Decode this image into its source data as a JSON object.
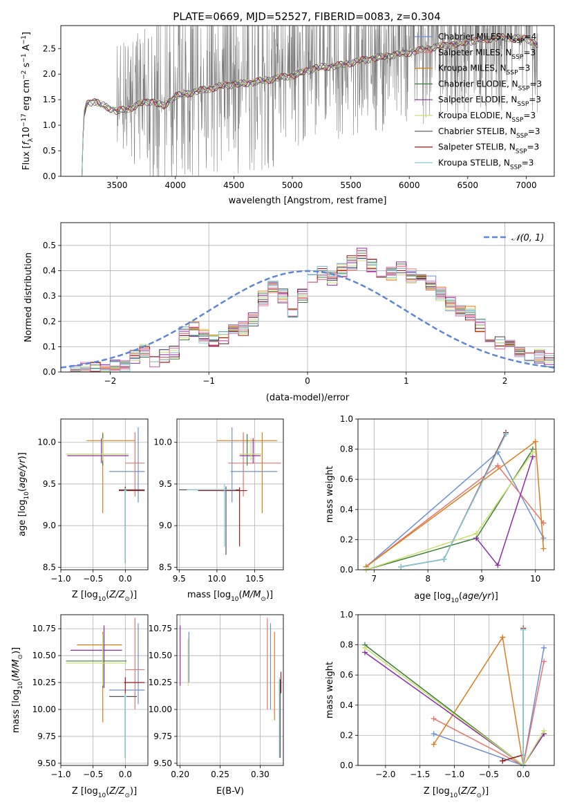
{
  "figure": {
    "title": "PLATE=0669, MJD=52527, FIBERID=0083, z=0.304"
  },
  "colors": {
    "data_spectrum": "#808080",
    "Chabrier MILES": "#6a8fd8",
    "Salpeter MILES": "#e8736a",
    "Kroupa MILES": "#e07b1a",
    "Chabrier ELODIE": "#3a7d3a",
    "Salpeter ELODIE": "#8e2aa8",
    "Kroupa ELODIE": "#c8e06a",
    "Chabrier STELIB": "#505050",
    "Salpeter STELIB": "#a01818",
    "Kroupa STELIB": "#80d0e0",
    "normal_curve": "#5b87d6",
    "pink": "#e87cb8"
  },
  "chart_data": [
    {
      "id": "spectrum",
      "type": "line",
      "xlabel": "wavelength [Angstrom, rest frame]",
      "ylabel_parts": [
        "Flux [",
        "f",
        "λ",
        "10",
        "−17",
        " erg cm",
        "−2",
        " s",
        "−1",
        " A",
        "−1",
        "]"
      ],
      "xlim": [
        3020,
        7240
      ],
      "ylim": [
        0,
        2.95
      ],
      "xticks": [
        3500,
        4000,
        4500,
        5000,
        5500,
        6000,
        6500,
        7000
      ],
      "yticks": [
        0.0,
        0.5,
        1.0,
        1.5,
        2.0,
        2.5
      ],
      "continuum_points": [
        [
          3200,
          0.0
        ],
        [
          3215,
          1.2
        ],
        [
          3240,
          1.45
        ],
        [
          3300,
          1.5
        ],
        [
          3400,
          1.4
        ],
        [
          3500,
          1.3
        ],
        [
          3600,
          1.35
        ],
        [
          3700,
          1.45
        ],
        [
          3800,
          1.5
        ],
        [
          3900,
          1.4
        ],
        [
          4000,
          1.6
        ],
        [
          4200,
          1.7
        ],
        [
          4400,
          1.8
        ],
        [
          4600,
          1.85
        ],
        [
          4800,
          1.92
        ],
        [
          5000,
          2.0
        ],
        [
          5200,
          2.15
        ],
        [
          5400,
          2.2
        ],
        [
          5600,
          2.3
        ],
        [
          5800,
          2.38
        ],
        [
          6000,
          2.45
        ],
        [
          6200,
          2.55
        ],
        [
          6400,
          2.62
        ],
        [
          6600,
          2.7
        ],
        [
          6800,
          2.75
        ],
        [
          7000,
          2.72
        ],
        [
          7100,
          2.6
        ]
      ],
      "legend": [
        {
          "label": "Chabrier MILES",
          "sub": "SSP",
          "n": "4"
        },
        {
          "label": "Salpeter MILES",
          "sub": "SSP",
          "n": "3"
        },
        {
          "label": "Kroupa MILES",
          "sub": "SSP",
          "n": "3"
        },
        {
          "label": "Chabrier ELODIE",
          "sub": "SSP",
          "n": "3"
        },
        {
          "label": "Salpeter ELODIE",
          "sub": "SSP",
          "n": "3"
        },
        {
          "label": "Kroupa ELODIE",
          "sub": "SSP",
          "n": "3"
        },
        {
          "label": "Chabrier STELIB",
          "sub": "SSP",
          "n": "3"
        },
        {
          "label": "Salpeter STELIB",
          "sub": "SSP",
          "n": "3"
        },
        {
          "label": "Kroupa STELIB",
          "sub": "SSP",
          "n": "3"
        }
      ],
      "legend_placement": "upper right"
    },
    {
      "id": "residuals",
      "type": "histogram",
      "xlabel": "(data-model)/error",
      "ylabel": "Normed distribution",
      "xlim": [
        -2.5,
        2.5
      ],
      "ylim": [
        0,
        0.59
      ],
      "xticks": [
        -2,
        -1,
        0,
        1,
        2
      ],
      "yticks": [
        0.0,
        0.1,
        0.2,
        0.3,
        0.4,
        0.5
      ],
      "grid": true,
      "legend": "𝒩(0, 1)",
      "bin_width": 0.1,
      "bin_start": -2.5,
      "hist_values": [
        0.0,
        0.0,
        0.01,
        0.01,
        0.0,
        0.02,
        0.02,
        0.06,
        0.08,
        0.04,
        0.06,
        0.08,
        0.15,
        0.17,
        0.14,
        0.12,
        0.14,
        0.16,
        0.17,
        0.21,
        0.29,
        0.33,
        0.3,
        0.24,
        0.3,
        0.38,
        0.39,
        0.37,
        0.4,
        0.43,
        0.46,
        0.42,
        0.38,
        0.39,
        0.41,
        0.38,
        0.38,
        0.35,
        0.31,
        0.27,
        0.25,
        0.23,
        0.18,
        0.14,
        0.12,
        0.1,
        0.08,
        0.07,
        0.06,
        0.05
      ]
    },
    {
      "id": "z_age",
      "type": "errorbar",
      "xlabel": "Z [log10(Z/Z⊙)]",
      "xlim": [
        -1.0,
        0.35
      ],
      "ylim": [
        8.47,
        10.28
      ],
      "xticks": [
        -1.0,
        -0.5,
        0.0
      ],
      "yticks": [
        8.5,
        9.0,
        9.5,
        10.0
      ],
      "bars": [
        {
          "model": "Kroupa MILES",
          "x": -0.35,
          "xl": -0.6,
          "xh": 0.15,
          "y": 10.02,
          "yl": 9.15,
          "yh": 10.12
        },
        {
          "model": "Chabrier ELODIE",
          "x": -0.35,
          "xl": -0.92,
          "xh": 0.02,
          "y": 9.86,
          "yl": 9.72,
          "yh": 10.1
        },
        {
          "model": "Salpeter ELODIE",
          "x": -0.37,
          "xl": -0.9,
          "xh": 0.05,
          "y": 9.84,
          "yl": 9.75,
          "yh": 10.05
        },
        {
          "model": "Kroupa ELODIE",
          "x": -0.35,
          "xl": -0.92,
          "xh": 0.05,
          "y": 9.86,
          "yl": 9.78,
          "yh": 10.05
        },
        {
          "model": "Chabrier MILES",
          "x": 0.2,
          "xl": -0.25,
          "xh": 0.3,
          "y": 9.65,
          "yl": 9.28,
          "yh": 10.18
        },
        {
          "model": "Salpeter MILES",
          "x": 0.15,
          "xl": 0.0,
          "xh": 0.3,
          "y": 9.75,
          "yl": 9.35,
          "yh": 10.12
        },
        {
          "model": "Chabrier STELIB",
          "x": 0.0,
          "xl": -0.1,
          "xh": 0.3,
          "y": 9.43,
          "yl": 8.55,
          "yh": 9.47
        },
        {
          "model": "Salpeter STELIB",
          "x": 0.0,
          "xl": -0.1,
          "xh": 0.3,
          "y": 9.42,
          "yl": 8.55,
          "yh": 9.46
        },
        {
          "model": "Kroupa STELIB",
          "x": 0.0,
          "xl": -0.02,
          "xh": 0.02,
          "y": 9.42,
          "yl": 8.55,
          "yh": 9.45
        }
      ]
    },
    {
      "id": "mass_age",
      "type": "errorbar",
      "xlabel": "mass [log10(M/M⊙)]",
      "xlim": [
        9.47,
        10.88
      ],
      "ylim": [
        8.47,
        10.28
      ],
      "xticks": [
        9.5,
        10.0,
        10.5
      ],
      "yticks": [
        8.5,
        9.0,
        9.5,
        10.0
      ],
      "bars": [
        {
          "model": "Kroupa MILES",
          "x": 10.6,
          "xl": 10.0,
          "xh": 10.8,
          "y": 10.02,
          "yl": 9.15,
          "yh": 10.12
        },
        {
          "model": "Chabrier MILES",
          "x": 10.2,
          "xl": 10.18,
          "xh": 10.8,
          "y": 9.65,
          "yl": 9.28,
          "yh": 10.18
        },
        {
          "model": "Salpeter MILES",
          "x": 10.35,
          "xl": 10.15,
          "xh": 10.85,
          "y": 9.75,
          "yl": 9.35,
          "yh": 10.12
        },
        {
          "model": "Chabrier ELODIE",
          "x": 10.4,
          "xl": 10.3,
          "xh": 10.55,
          "y": 9.86,
          "yl": 9.72,
          "yh": 10.1
        },
        {
          "model": "Salpeter ELODIE",
          "x": 10.48,
          "xl": 10.3,
          "xh": 10.58,
          "y": 9.84,
          "yl": 9.75,
          "yh": 10.05
        },
        {
          "model": "Kroupa ELODIE",
          "x": 10.45,
          "xl": 10.3,
          "xh": 10.6,
          "y": 9.86,
          "yl": 9.78,
          "yh": 10.05
        },
        {
          "model": "Chabrier STELIB",
          "x": 10.12,
          "xl": 9.5,
          "xh": 10.3,
          "y": 9.43,
          "yl": 8.65,
          "yh": 9.47
        },
        {
          "model": "Salpeter STELIB",
          "x": 10.3,
          "xl": 9.75,
          "xh": 10.4,
          "y": 9.42,
          "yl": 8.75,
          "yh": 9.46
        },
        {
          "model": "Kroupa STELIB",
          "x": 10.1,
          "xl": 9.6,
          "xh": 10.25,
          "y": 9.43,
          "yl": 8.75,
          "yh": 9.5
        }
      ]
    },
    {
      "id": "age_weight",
      "type": "line",
      "xlabel": "age  [log10(age/yr)]",
      "ylabel": "mass weight",
      "xlim": [
        6.7,
        10.35
      ],
      "ylim": [
        0,
        1.0
      ],
      "xticks": [
        7,
        8,
        9,
        10
      ],
      "yticks": [
        0.0,
        0.2,
        0.4,
        0.6,
        0.8,
        1.0
      ],
      "grid": true,
      "series": [
        {
          "model": "Chabrier MILES",
          "x": [
            6.85,
            9.3,
            10.15
          ],
          "y": [
            0.02,
            0.78,
            0.21
          ]
        },
        {
          "model": "Salpeter MILES",
          "x": [
            6.85,
            9.3,
            10.15
          ],
          "y": [
            0.02,
            0.69,
            0.31
          ]
        },
        {
          "model": "Kroupa MILES",
          "x": [
            6.85,
            10.0,
            10.15
          ],
          "y": [
            0.02,
            0.85,
            0.14
          ]
        },
        {
          "model": "Chabrier ELODIE",
          "x": [
            6.85,
            8.9,
            9.95
          ],
          "y": [
            0.0,
            0.21,
            0.8
          ]
        },
        {
          "model": "Salpeter ELODIE",
          "x": [
            8.9,
            9.3,
            9.95
          ],
          "y": [
            0.21,
            0.03,
            0.75
          ]
        },
        {
          "model": "Kroupa ELODIE",
          "x": [
            6.85,
            8.9,
            9.95
          ],
          "y": [
            0.0,
            0.24,
            0.78
          ]
        },
        {
          "model": "Chabrier STELIB",
          "x": [
            7.5,
            8.3,
            9.45
          ],
          "y": [
            0.02,
            0.07,
            0.9
          ]
        },
        {
          "model": "Salpeter STELIB",
          "x": [
            7.5,
            8.3,
            9.45
          ],
          "y": [
            0.02,
            0.07,
            0.91
          ]
        },
        {
          "model": "Kroupa STELIB",
          "x": [
            7.5,
            8.3,
            9.45
          ],
          "y": [
            0.02,
            0.07,
            0.9
          ]
        }
      ]
    },
    {
      "id": "z_mass",
      "type": "errorbar",
      "xlabel": "Z [log10(Z/Z⊙)]",
      "ylabel": "mass [log10(M/M⊙)]",
      "xlim": [
        -1.0,
        0.35
      ],
      "ylim": [
        9.48,
        10.88
      ],
      "xticks": [
        -1.0,
        -0.5,
        0.0
      ],
      "yticks": [
        9.5,
        9.75,
        10.0,
        10.25,
        10.5,
        10.75
      ],
      "bars": [
        {
          "model": "Kroupa MILES",
          "x": -0.35,
          "xl": -0.75,
          "xh": -0.05,
          "y": 10.6,
          "yl": 9.88,
          "yh": 10.72
        },
        {
          "model": "Salpeter ELODIE",
          "x": -0.33,
          "xl": -0.85,
          "xh": -0.05,
          "y": 10.55,
          "yl": 10.2,
          "yh": 10.78
        },
        {
          "model": "Chabrier ELODIE",
          "x": -0.35,
          "xl": -0.92,
          "xh": 0.02,
          "y": 10.45,
          "yl": 10.2,
          "yh": 10.7
        },
        {
          "model": "Kroupa ELODIE",
          "x": -0.35,
          "xl": -0.92,
          "xh": 0.02,
          "y": 10.43,
          "yl": 10.22,
          "yh": 10.7
        },
        {
          "model": "Salpeter MILES",
          "x": 0.15,
          "xl": 0.0,
          "xh": 0.3,
          "y": 10.37,
          "yl": 10.0,
          "yh": 10.85
        },
        {
          "model": "Chabrier MILES",
          "x": 0.2,
          "xl": -0.25,
          "xh": 0.3,
          "y": 10.18,
          "yl": 10.05,
          "yh": 10.8
        },
        {
          "model": "Salpeter STELIB",
          "x": 0.0,
          "xl": -0.02,
          "xh": 0.3,
          "y": 10.25,
          "yl": 9.55,
          "yh": 10.3
        },
        {
          "model": "Chabrier STELIB",
          "x": 0.0,
          "xl": -0.25,
          "xh": 0.18,
          "y": 10.12,
          "yl": 9.55,
          "yh": 10.15
        },
        {
          "model": "Kroupa STELIB",
          "x": 0.0,
          "xl": -0.02,
          "xh": 0.02,
          "y": 10.12,
          "yl": 9.55,
          "yh": 10.15
        }
      ]
    },
    {
      "id": "ebv_mass",
      "type": "errorbar",
      "xlabel": "E(B-V)",
      "xlim": [
        0.196,
        0.329
      ],
      "ylim": [
        9.48,
        10.88
      ],
      "xticks": [
        0.2,
        0.25,
        0.3
      ],
      "yticks": [
        9.5,
        9.75,
        10.0,
        10.25,
        10.5,
        10.75
      ],
      "bars": [
        {
          "model": "Salpeter ELODIE",
          "x": 0.2,
          "y": 10.5,
          "yl": 10.22,
          "yh": 10.78
        },
        {
          "model": "Chabrier MILES",
          "x": 0.211,
          "y": 10.45,
          "yl": 10.25,
          "yh": 10.72
        },
        {
          "model": "Kroupa ELODIE",
          "x": 0.21,
          "y": 10.45,
          "yl": 10.22,
          "yh": 10.66
        },
        {
          "model": "Salpeter MILES",
          "x": 0.309,
          "y": 10.4,
          "yl": 10.0,
          "yh": 10.85
        },
        {
          "model": "Chabrier MILES",
          "x": 0.313,
          "y": 10.35,
          "yl": 10.0,
          "yh": 10.8
        },
        {
          "model": "Kroupa MILES",
          "x": 0.318,
          "y": 10.3,
          "yl": 9.9,
          "yh": 10.72
        },
        {
          "model": "Salpeter STELIB",
          "x": 0.326,
          "y": 10.25,
          "yl": 10.15,
          "yh": 10.35
        },
        {
          "model": "Kroupa STELIB",
          "x": 0.324,
          "y": 10.0,
          "yl": 9.55,
          "yh": 10.3
        },
        {
          "model": "Chabrier STELIB",
          "x": 0.325,
          "y": 10.0,
          "yl": 9.55,
          "yh": 10.28
        }
      ]
    },
    {
      "id": "z_weight",
      "type": "line",
      "xlabel": "Z [log10(Z/Z⊙)]",
      "ylabel": "mass weight",
      "xlim": [
        -2.4,
        0.45
      ],
      "ylim": [
        0,
        1.0
      ],
      "xticks": [
        -2.0,
        -1.5,
        -1.0,
        -0.5,
        0.0
      ],
      "yticks": [
        0.0,
        0.2,
        0.4,
        0.6,
        0.8,
        1.0
      ],
      "grid": true,
      "series": [
        {
          "model": "Chabrier MILES",
          "x": [
            -1.3,
            0.0,
            0.3
          ],
          "y": [
            0.21,
            0.0,
            0.78
          ]
        },
        {
          "model": "Salpeter MILES",
          "x": [
            -1.3,
            0.0,
            0.3
          ],
          "y": [
            0.31,
            0.0,
            0.69
          ]
        },
        {
          "model": "Kroupa MILES",
          "x": [
            -1.3,
            -0.3,
            0.0
          ],
          "y": [
            0.14,
            0.85,
            0.0
          ]
        },
        {
          "model": "Chabrier ELODIE",
          "x": [
            -2.3,
            0.0,
            0.3
          ],
          "y": [
            0.8,
            0.0,
            0.21
          ]
        },
        {
          "model": "Salpeter ELODIE",
          "x": [
            -2.3,
            0.0,
            0.3
          ],
          "y": [
            0.75,
            0.0,
            0.21
          ]
        },
        {
          "model": "Kroupa ELODIE",
          "x": [
            -2.3,
            0.0,
            0.3
          ],
          "y": [
            0.78,
            0.0,
            0.23
          ]
        },
        {
          "model": "Chabrier STELIB",
          "x": [
            -0.3,
            0.0,
            0.0
          ],
          "y": [
            0.03,
            0.07,
            0.9
          ]
        },
        {
          "model": "Salpeter STELIB",
          "x": [
            -0.3,
            0.0,
            0.0
          ],
          "y": [
            0.03,
            0.07,
            0.91
          ]
        },
        {
          "model": "Kroupa STELIB",
          "x": [
            0.0,
            0.0,
            0.0
          ],
          "y": [
            0.0,
            0.07,
            0.9
          ]
        }
      ]
    }
  ],
  "shared_labels": {
    "age_ylabel": "age  [log10(age/yr)]",
    "mass_ylabel": "mass [log10(M/M⊙)]"
  }
}
